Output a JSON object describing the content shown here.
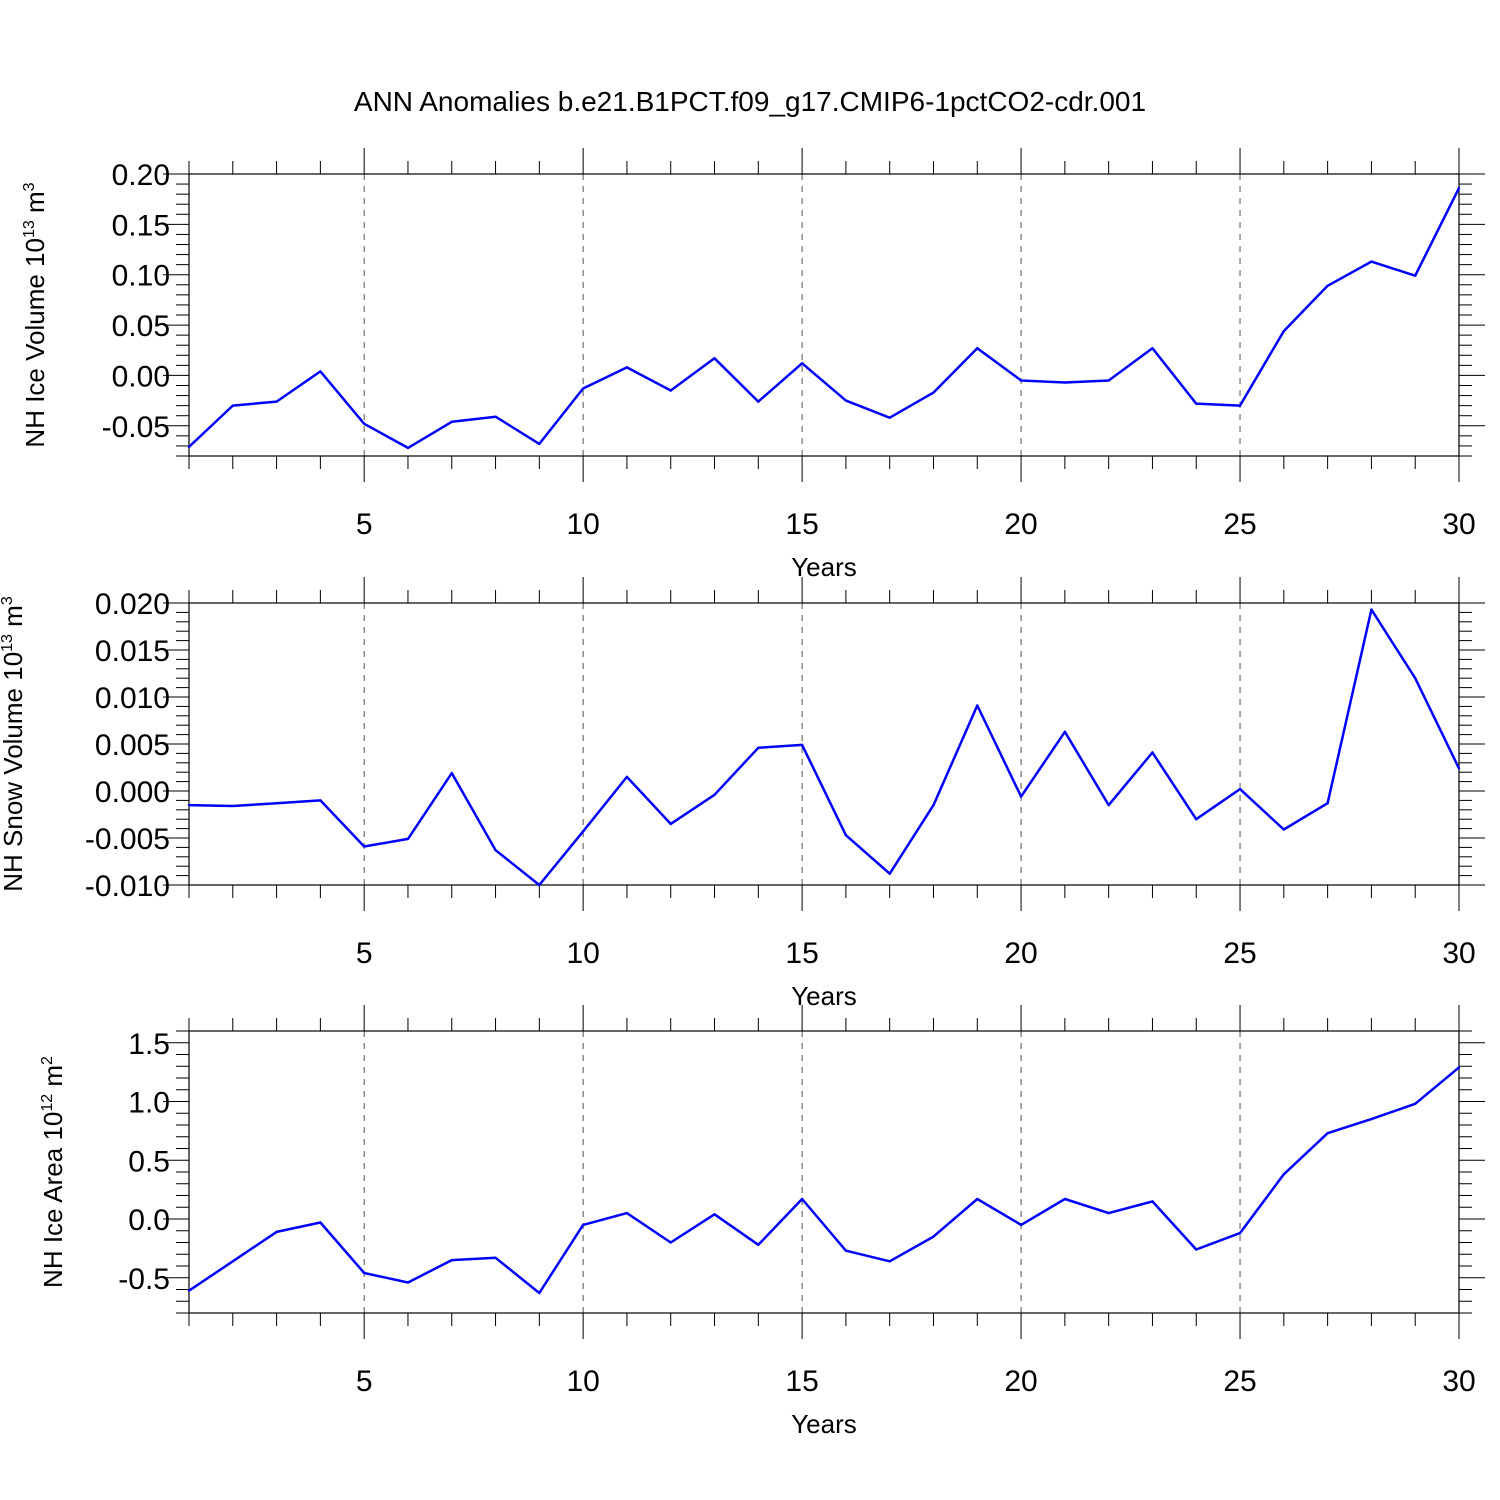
{
  "title": "ANN Anomalies b.e21.B1PCT.f09_g17.CMIP6-1pctCO2-cdr.001",
  "colors": {
    "line": "#0000ff",
    "axis": "#000000",
    "grid": "#555555"
  },
  "chart_data": [
    {
      "type": "line",
      "xlabel": "Years",
      "ylabel_main": "NH Ice Volume 10",
      "ylabel_exp": "13",
      "ylabel_unit": "m",
      "ylabel_unit_exp": "3",
      "xlim": [
        1,
        30
      ],
      "ylim": [
        -0.08,
        0.2
      ],
      "xticks": [
        5,
        10,
        15,
        20,
        25,
        30
      ],
      "yticks": [
        "0.20",
        "0.15",
        "0.10",
        "0.05",
        "0.00",
        "-0.05"
      ],
      "yticks_values": [
        0.2,
        0.15,
        0.1,
        0.05,
        0.0,
        -0.05
      ],
      "vgrid": [
        5,
        10,
        15,
        20,
        25
      ],
      "x": [
        1,
        2,
        3,
        4,
        5,
        6,
        7,
        8,
        9,
        10,
        11,
        12,
        13,
        14,
        15,
        16,
        17,
        18,
        19,
        20,
        21,
        22,
        23,
        24,
        25,
        26,
        27,
        28,
        29,
        30
      ],
      "y": [
        -0.071,
        -0.03,
        -0.026,
        0.004,
        -0.048,
        -0.072,
        -0.046,
        -0.041,
        -0.068,
        -0.013,
        0.008,
        -0.015,
        0.017,
        -0.026,
        0.012,
        -0.025,
        -0.042,
        -0.017,
        0.027,
        -0.005,
        -0.007,
        -0.005,
        0.027,
        -0.028,
        -0.03,
        0.044,
        0.089,
        0.113,
        0.099,
        0.186
      ]
    },
    {
      "type": "line",
      "xlabel": "Years",
      "ylabel_main": "NH Snow Volume 10",
      "ylabel_exp": "13",
      "ylabel_unit": "m",
      "ylabel_unit_exp": "3",
      "xlim": [
        1,
        30
      ],
      "ylim": [
        -0.01,
        0.02
      ],
      "xticks": [
        5,
        10,
        15,
        20,
        25,
        30
      ],
      "yticks": [
        "0.020",
        "0.015",
        "0.010",
        "0.005",
        "0.000",
        "-0.005",
        "-0.010"
      ],
      "yticks_values": [
        0.02,
        0.015,
        0.01,
        0.005,
        0.0,
        -0.005,
        -0.01
      ],
      "vgrid": [
        5,
        10,
        15,
        20,
        25
      ],
      "x": [
        1,
        2,
        3,
        4,
        5,
        6,
        7,
        8,
        9,
        10,
        11,
        12,
        13,
        14,
        15,
        16,
        17,
        18,
        19,
        20,
        21,
        22,
        23,
        24,
        25,
        26,
        27,
        28,
        29,
        30
      ],
      "y": [
        -0.0015,
        -0.0016,
        -0.0013,
        -0.001,
        -0.0059,
        -0.0051,
        0.0019,
        -0.0063,
        -0.01,
        -0.0043,
        0.0015,
        -0.0035,
        -0.0004,
        0.0046,
        0.0049,
        -0.0047,
        -0.0088,
        -0.0015,
        0.0091,
        -0.0006,
        0.0063,
        -0.0015,
        0.0041,
        -0.003,
        0.0002,
        -0.0041,
        -0.0013,
        0.0193,
        0.012,
        0.0024
      ]
    },
    {
      "type": "line",
      "xlabel": "Years",
      "ylabel_main": "NH Ice Area 10",
      "ylabel_exp": "12",
      "ylabel_unit": "m",
      "ylabel_unit_exp": "2",
      "xlim": [
        1,
        30
      ],
      "ylim": [
        -0.8,
        1.6
      ],
      "xticks": [
        5,
        10,
        15,
        20,
        25,
        30
      ],
      "yticks": [
        "1.5",
        "1.0",
        "0.5",
        "0.0",
        "-0.5"
      ],
      "yticks_values": [
        1.5,
        1.0,
        0.5,
        0.0,
        -0.5
      ],
      "vgrid": [
        5,
        10,
        15,
        20,
        25
      ],
      "x": [
        1,
        2,
        3,
        4,
        5,
        6,
        7,
        8,
        9,
        10,
        11,
        12,
        13,
        14,
        15,
        16,
        17,
        18,
        19,
        20,
        21,
        22,
        23,
        24,
        25,
        26,
        27,
        28,
        29,
        30
      ],
      "y": [
        -0.61,
        -0.36,
        -0.11,
        -0.03,
        -0.46,
        -0.54,
        -0.35,
        -0.33,
        -0.63,
        -0.05,
        0.05,
        -0.2,
        0.04,
        -0.22,
        0.17,
        -0.27,
        -0.36,
        -0.15,
        0.17,
        -0.05,
        0.17,
        0.05,
        0.15,
        -0.26,
        -0.12,
        0.38,
        0.73,
        0.85,
        0.98,
        1.29
      ]
    }
  ]
}
